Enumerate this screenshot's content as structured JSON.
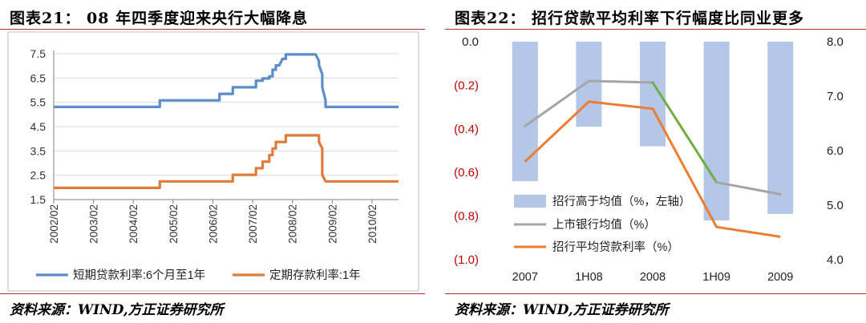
{
  "left": {
    "title": "图表21：  08 年四季度迎来央行大幅降息",
    "source": "资料来源：WIND,方正证券研究所",
    "chart_data": {
      "type": "line",
      "x_tick_labels": [
        "2002/02",
        "2003/02",
        "2004/02",
        "2005/02",
        "2006/02",
        "2007/02",
        "2008/02",
        "2009/02",
        "2010/02"
      ],
      "y_tick_labels": [
        "1.5",
        "2.5",
        "3.5",
        "4.5",
        "5.5",
        "6.5",
        "7.5"
      ],
      "ylim": [
        1.5,
        7.5
      ],
      "grid": "horizontal",
      "legend_position": "bottom",
      "colors": {
        "loan": "#5b8ec9",
        "deposit": "#e07b39"
      },
      "series": [
        {
          "name": "短期贷款利率:6个月至1年",
          "points": [
            [
              "2002/02",
              5.31
            ],
            [
              "2004/10",
              5.31
            ],
            [
              "2004/10",
              5.58
            ],
            [
              "2006/04",
              5.58
            ],
            [
              "2006/04",
              5.85
            ],
            [
              "2006/08",
              5.85
            ],
            [
              "2006/08",
              6.12
            ],
            [
              "2007/03",
              6.12
            ],
            [
              "2007/03",
              6.39
            ],
            [
              "2007/05",
              6.39
            ],
            [
              "2007/05",
              6.48
            ],
            [
              "2007/07",
              6.48
            ],
            [
              "2007/07",
              6.57
            ],
            [
              "2007/08",
              6.57
            ],
            [
              "2007/08",
              6.84
            ],
            [
              "2007/09",
              6.84
            ],
            [
              "2007/09",
              7.02
            ],
            [
              "2007/10",
              7.02
            ],
            [
              "2007/11",
              7.29
            ],
            [
              "2007/12",
              7.29
            ],
            [
              "2007/12",
              7.47
            ],
            [
              "2008/09",
              7.47
            ],
            [
              "2008/10",
              7.2
            ],
            [
              "2008/10",
              7.02
            ],
            [
              "2008/11",
              6.66
            ],
            [
              "2008/11",
              6.12
            ],
            [
              "2008/12",
              5.58
            ],
            [
              "2008/12",
              5.31
            ],
            [
              "2010/10",
              5.31
            ]
          ]
        },
        {
          "name": "定期存款利率:1年",
          "points": [
            [
              "2002/02",
              1.98
            ],
            [
              "2004/10",
              1.98
            ],
            [
              "2004/10",
              2.25
            ],
            [
              "2006/08",
              2.25
            ],
            [
              "2006/08",
              2.52
            ],
            [
              "2007/03",
              2.52
            ],
            [
              "2007/03",
              2.79
            ],
            [
              "2007/05",
              2.79
            ],
            [
              "2007/05",
              3.06
            ],
            [
              "2007/07",
              3.06
            ],
            [
              "2007/07",
              3.33
            ],
            [
              "2007/08",
              3.33
            ],
            [
              "2007/08",
              3.6
            ],
            [
              "2007/09",
              3.6
            ],
            [
              "2007/09",
              3.87
            ],
            [
              "2007/12",
              3.87
            ],
            [
              "2007/12",
              4.14
            ],
            [
              "2008/10",
              4.14
            ],
            [
              "2008/10",
              3.87
            ],
            [
              "2008/11",
              3.6
            ],
            [
              "2008/11",
              2.52
            ],
            [
              "2008/12",
              2.25
            ],
            [
              "2010/10",
              2.25
            ]
          ]
        }
      ]
    }
  },
  "right": {
    "title": "图表22：   招行贷款平均利率下行幅度比同业更多",
    "source": "资料来源：WIND,方正证券研究所",
    "chart_data": {
      "type": "bar",
      "categories": [
        "2007",
        "1H08",
        "2008",
        "1H09",
        "2009"
      ],
      "left_y_tick_labels": [
        "0.0",
        "(0.2)",
        "(0.4)",
        "(0.6)",
        "(0.8)",
        "(1.0)"
      ],
      "right_y_tick_labels": [
        "8.0",
        "7.0",
        "6.0",
        "5.0",
        "4.0"
      ],
      "ylim_left": [
        -1.0,
        0.0
      ],
      "ylim_right": [
        4.0,
        8.0
      ],
      "legend_position": "bottom-left",
      "colors": {
        "bar": "#b4c7e7",
        "industry": "#a5a5a5",
        "industry_highlight": "#70ad47",
        "cmb": "#ed7d31",
        "negative_tick": "#c00000"
      },
      "series": [
        {
          "name": "招行高于均值（%，左轴）",
          "axis": "left",
          "values": [
            -0.64,
            -0.39,
            -0.48,
            -0.82,
            -0.79
          ]
        },
        {
          "name": "上市银行均值（%）",
          "axis": "right",
          "values": [
            6.45,
            7.28,
            7.25,
            5.42,
            5.2
          ]
        },
        {
          "name": "招行平均贷款利率（%）",
          "axis": "right",
          "values": [
            5.8,
            6.9,
            6.77,
            4.6,
            4.42
          ]
        }
      ]
    }
  }
}
